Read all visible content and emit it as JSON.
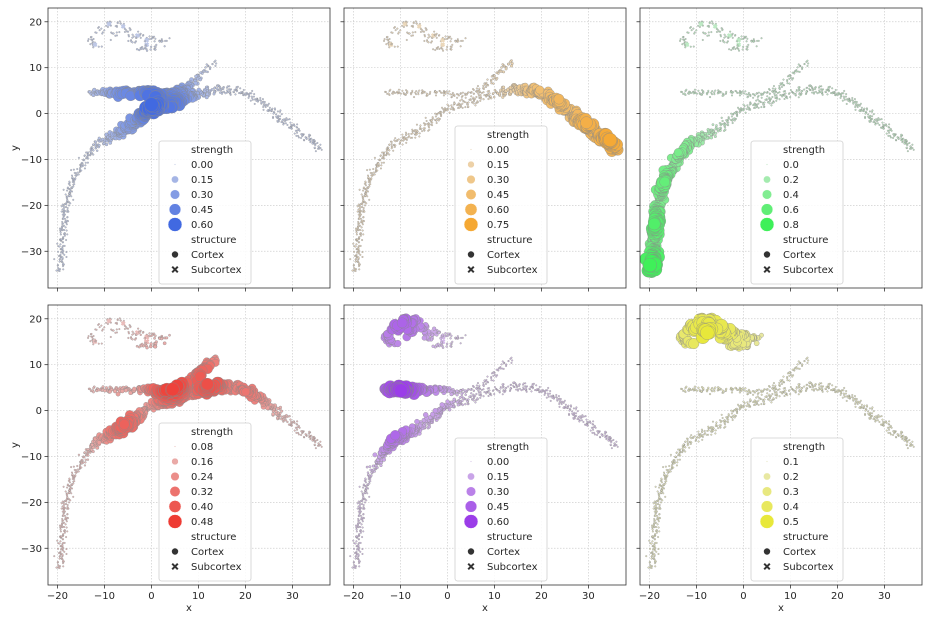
{
  "chart_data": {
    "type": "scatter",
    "layout": "2x3 grid of panels sharing x and y axes",
    "xlabel": "x",
    "ylabel": "y",
    "xlim": [
      -22,
      38
    ],
    "ylim": [
      -38,
      23
    ],
    "xticks": [
      -20,
      -10,
      0,
      10,
      20,
      30
    ],
    "yticks": [
      -30,
      -20,
      -10,
      0,
      10,
      20
    ],
    "grid": true,
    "legend_placement": "lower center",
    "structure_legend": {
      "title": "structure",
      "entries": [
        {
          "label": "Cortex",
          "marker": "circle"
        },
        {
          "label": "Subcortex",
          "marker": "x"
        }
      ]
    },
    "manifold_path": [
      [
        -19.5,
        -34
      ],
      [
        -19,
        -28
      ],
      [
        -18.5,
        -22
      ],
      [
        -17.5,
        -17
      ],
      [
        -16,
        -13
      ],
      [
        -14,
        -10
      ],
      [
        -12,
        -7
      ],
      [
        -9,
        -5
      ],
      [
        -6,
        -4
      ],
      [
        -3,
        -1.5
      ],
      [
        0,
        1
      ],
      [
        3,
        2
      ],
      [
        6,
        3
      ],
      [
        9,
        4
      ],
      [
        12,
        5
      ],
      [
        15,
        5.5
      ],
      [
        18,
        5
      ],
      [
        21,
        4
      ],
      [
        24,
        2
      ],
      [
        27,
        -1
      ],
      [
        30,
        -3
      ],
      [
        33,
        -5
      ],
      [
        36,
        -8
      ]
    ],
    "branch_path": [
      [
        -13,
        4.5
      ],
      [
        -9,
        4.5
      ],
      [
        -5,
        4.5
      ],
      [
        -1,
        4.5
      ],
      [
        3,
        4
      ],
      [
        7,
        5
      ],
      [
        10,
        8
      ],
      [
        12,
        10
      ],
      [
        14,
        11
      ]
    ],
    "top_cluster": [
      [
        -13,
        16
      ],
      [
        -11,
        18
      ],
      [
        -9,
        19.5
      ],
      [
        -7,
        19.5
      ],
      [
        -5,
        18
      ],
      [
        -3,
        17
      ],
      [
        -1,
        16.5
      ],
      [
        1,
        16
      ],
      [
        3,
        15.5
      ],
      [
        -12,
        15
      ],
      [
        -8,
        17
      ],
      [
        -4,
        16
      ],
      [
        -2,
        14
      ],
      [
        0,
        14.5
      ]
    ],
    "subcortex_points": [
      [
        -9,
        19.5
      ],
      [
        -6,
        19
      ],
      [
        -3,
        17
      ],
      [
        -1,
        16
      ],
      [
        -12,
        15
      ],
      [
        -1,
        15
      ]
    ],
    "panels": [
      {
        "color": "#4169e1",
        "legend_title": "strength",
        "levels": [
          "0.00",
          "0.15",
          "0.30",
          "0.45",
          "0.60"
        ],
        "hotspots": [
          [
            0,
            2
          ],
          [
            4,
            1.5
          ],
          [
            -5,
            3
          ],
          [
            -4,
            -1
          ]
        ]
      },
      {
        "color": "#f5a833",
        "legend_title": "strength",
        "levels": [
          "0.00",
          "0.15",
          "0.30",
          "0.45",
          "0.60",
          "0.75"
        ],
        "hotspots": [
          [
            35,
            -5
          ],
          [
            30,
            -2
          ],
          [
            24,
            3
          ],
          [
            20,
            5
          ]
        ]
      },
      {
        "color": "#3ef059",
        "legend_title": "strength",
        "levels": [
          "0.0",
          "0.2",
          "0.4",
          "0.6",
          "0.8"
        ],
        "hotspots": [
          [
            -19.5,
            -33
          ],
          [
            -19,
            -24
          ],
          [
            -17,
            -15
          ],
          [
            -14,
            -8
          ]
        ]
      },
      {
        "color": "#ee3b33",
        "legend_title": "strength",
        "levels": [
          "0.08",
          "0.16",
          "0.24",
          "0.32",
          "0.40",
          "0.48"
        ],
        "hotspots": [
          [
            4,
            6
          ],
          [
            12,
            6
          ],
          [
            -6,
            -3
          ],
          [
            20,
            4
          ]
        ]
      },
      {
        "color": "#9b3de8",
        "legend_title": "strength",
        "levels": [
          "0.00",
          "0.15",
          "0.30",
          "0.45",
          "0.60"
        ],
        "hotspots": [
          [
            -10,
            4.5
          ],
          [
            -13,
            -3
          ],
          [
            -10,
            19
          ],
          [
            -6,
            4
          ]
        ]
      },
      {
        "color": "#e8e83a",
        "legend_title": "strength",
        "levels": [
          "0.1",
          "0.2",
          "0.3",
          "0.4",
          "0.5"
        ],
        "hotspots": [
          [
            -8,
            17
          ],
          [
            -5,
            18.5
          ],
          [
            -11,
            18
          ],
          [
            -2,
            16
          ]
        ]
      }
    ]
  }
}
